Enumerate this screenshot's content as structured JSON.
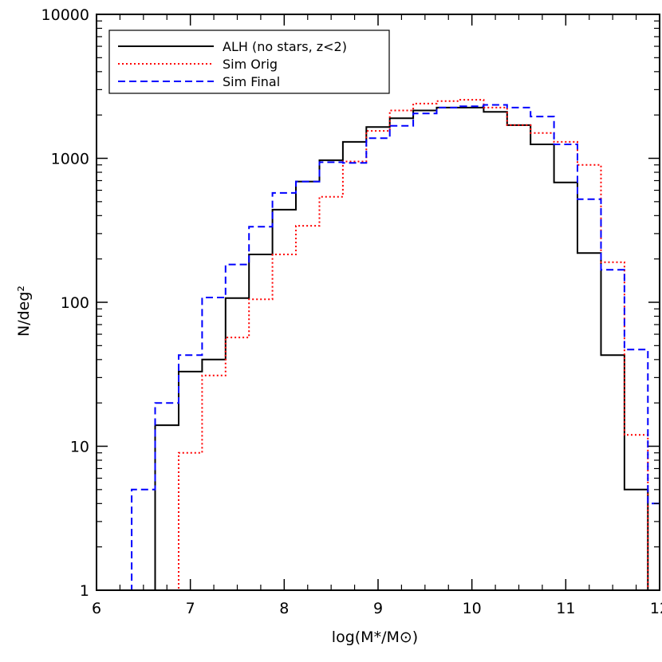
{
  "chart_data": {
    "type": "line",
    "step": true,
    "xlabel": "log(M*/M⊙)",
    "ylabel": "N/deg²",
    "xlim": [
      6,
      12
    ],
    "ylim": [
      1,
      10000
    ],
    "yscale": "log",
    "xticks": [
      "6",
      "7",
      "8",
      "9",
      "10",
      "11",
      "12"
    ],
    "yticks": [
      "1",
      "10",
      "100",
      "1000",
      "10000"
    ],
    "grid": false,
    "legend_position": "top-left",
    "bin_edges": [
      6.0,
      6.375,
      6.625,
      6.875,
      7.125,
      7.375,
      7.625,
      7.875,
      8.125,
      8.375,
      8.625,
      8.875,
      9.125,
      9.375,
      9.625,
      9.875,
      10.125,
      10.375,
      10.625,
      10.875,
      11.125,
      11.375,
      11.625,
      11.875,
      12.0
    ],
    "series": [
      {
        "name": "ALH (no stars, z<2)",
        "color": "#000000",
        "dash": "solid",
        "values": [
          1,
          1,
          14,
          33,
          40,
          107,
          215,
          440,
          690,
          970,
          1300,
          1650,
          1900,
          2150,
          2250,
          2250,
          2100,
          1700,
          1250,
          680,
          220,
          43,
          5,
          1
        ]
      },
      {
        "name": "Sim Orig",
        "color": "#ff0000",
        "dash": "dotted",
        "values": [
          1,
          1,
          1,
          9,
          31,
          57,
          105,
          215,
          340,
          540,
          950,
          1550,
          2150,
          2400,
          2500,
          2550,
          2250,
          1700,
          1500,
          1300,
          900,
          190,
          12,
          1
        ]
      },
      {
        "name": "Sim Final",
        "color": "#0000ff",
        "dash": "dashed",
        "values": [
          1,
          5,
          20,
          43,
          108,
          183,
          335,
          575,
          690,
          940,
          930,
          1380,
          1680,
          2050,
          2250,
          2300,
          2350,
          2250,
          1950,
          1250,
          520,
          168,
          47,
          4
        ]
      }
    ]
  }
}
